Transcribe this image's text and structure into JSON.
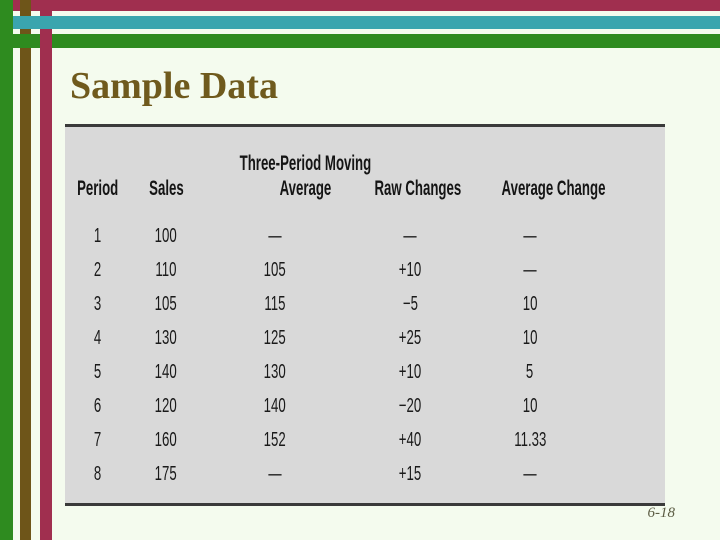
{
  "slide": {
    "title": "Sample Data",
    "page_number": "6-18"
  },
  "table": {
    "header": {
      "col1": "Period",
      "col2": "Sales",
      "col3_line1": "Three-Period Moving",
      "col3_line2": "Average",
      "col4": "Raw Changes",
      "col5": "Average Change"
    },
    "rows": [
      {
        "period": "1",
        "sales": "100",
        "moving_avg": "—",
        "raw_change": "—",
        "avg_change": "—"
      },
      {
        "period": "2",
        "sales": "110",
        "moving_avg": "105",
        "raw_change": "+10",
        "avg_change": "—"
      },
      {
        "period": "3",
        "sales": "105",
        "moving_avg": "115",
        "raw_change": "−5",
        "avg_change": "10"
      },
      {
        "period": "4",
        "sales": "130",
        "moving_avg": "125",
        "raw_change": "+25",
        "avg_change": "10"
      },
      {
        "period": "5",
        "sales": "140",
        "moving_avg": "130",
        "raw_change": "+10",
        "avg_change": "5"
      },
      {
        "period": "6",
        "sales": "120",
        "moving_avg": "140",
        "raw_change": "−20",
        "avg_change": "10"
      },
      {
        "period": "7",
        "sales": "160",
        "moving_avg": "152",
        "raw_change": "+40",
        "avg_change": "11.33"
      },
      {
        "period": "8",
        "sales": "175",
        "moving_avg": "—",
        "raw_change": "+15",
        "avg_change": "—"
      }
    ]
  },
  "chart_data": {
    "type": "table",
    "title": "Sample Data",
    "columns": [
      "Period",
      "Sales",
      "Three-Period Moving Average",
      "Raw Changes",
      "Average Change"
    ],
    "rows": [
      [
        "1",
        "100",
        "—",
        "—",
        "—"
      ],
      [
        "2",
        "110",
        "105",
        "+10",
        "—"
      ],
      [
        "3",
        "105",
        "115",
        "−5",
        "10"
      ],
      [
        "4",
        "130",
        "125",
        "+25",
        "10"
      ],
      [
        "5",
        "140",
        "130",
        "+10",
        "5"
      ],
      [
        "6",
        "120",
        "140",
        "−20",
        "10"
      ],
      [
        "7",
        "160",
        "152",
        "+40",
        "11.33"
      ],
      [
        "8",
        "175",
        "—",
        "+15",
        "—"
      ]
    ]
  },
  "colors": {
    "background": "#f4fbee",
    "stripe_green": "#2e8b1f",
    "stripe_brown": "#6e5519",
    "stripe_maroon": "#a02f4f",
    "stripe_teal": "#3aa5ae",
    "table_background": "#d9d9d9",
    "table_border": "#3a3a3a",
    "title_text": "#6f5a1d"
  }
}
